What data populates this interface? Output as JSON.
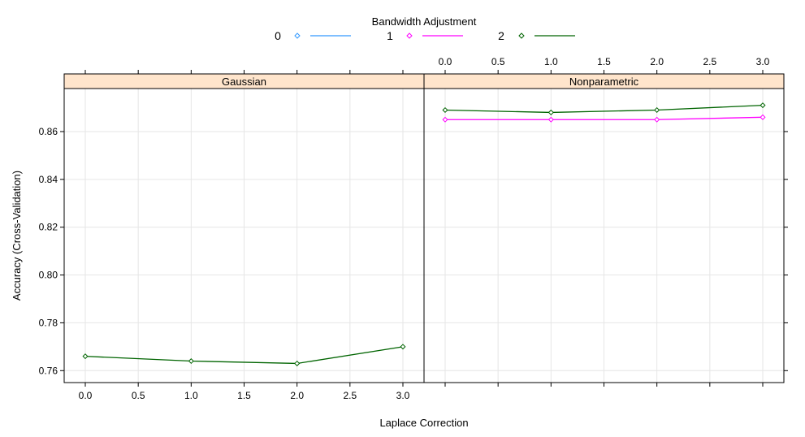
{
  "chart_data": {
    "type": "line",
    "legend": {
      "title": "Bandwidth Adjustment",
      "position": "top",
      "entries": [
        "0",
        "1",
        "2"
      ]
    },
    "xlabel": "Laplace Correction",
    "ylabel": "Accuracy (Cross-Validation)",
    "x_ticks": [
      "0.0",
      "0.5",
      "1.0",
      "1.5",
      "2.0",
      "2.5",
      "3.0"
    ],
    "y_ticks": [
      "0.76",
      "0.78",
      "0.80",
      "0.82",
      "0.84",
      "0.86"
    ],
    "xlim": [
      -0.2,
      3.2
    ],
    "ylim": [
      0.755,
      0.878
    ],
    "grid": true,
    "panels": [
      {
        "strip": "Gaussian",
        "series": [
          {
            "name": "2",
            "x": [
              0,
              1,
              2,
              3
            ],
            "values": [
              0.766,
              0.764,
              0.763,
              0.77
            ]
          }
        ]
      },
      {
        "strip": "Nonparametric",
        "series": [
          {
            "name": "1",
            "x": [
              0,
              1,
              2,
              3
            ],
            "values": [
              0.865,
              0.865,
              0.865,
              0.866
            ]
          },
          {
            "name": "2",
            "x": [
              0,
              1,
              2,
              3
            ],
            "values": [
              0.869,
              0.868,
              0.869,
              0.871
            ]
          }
        ]
      }
    ],
    "colors": {
      "0": "#3399ff",
      "1": "#ff00ff",
      "2": "#006400",
      "strip_bg": "#ffe5cc",
      "grid": "#e6e6e6",
      "frame": "#000000"
    }
  }
}
